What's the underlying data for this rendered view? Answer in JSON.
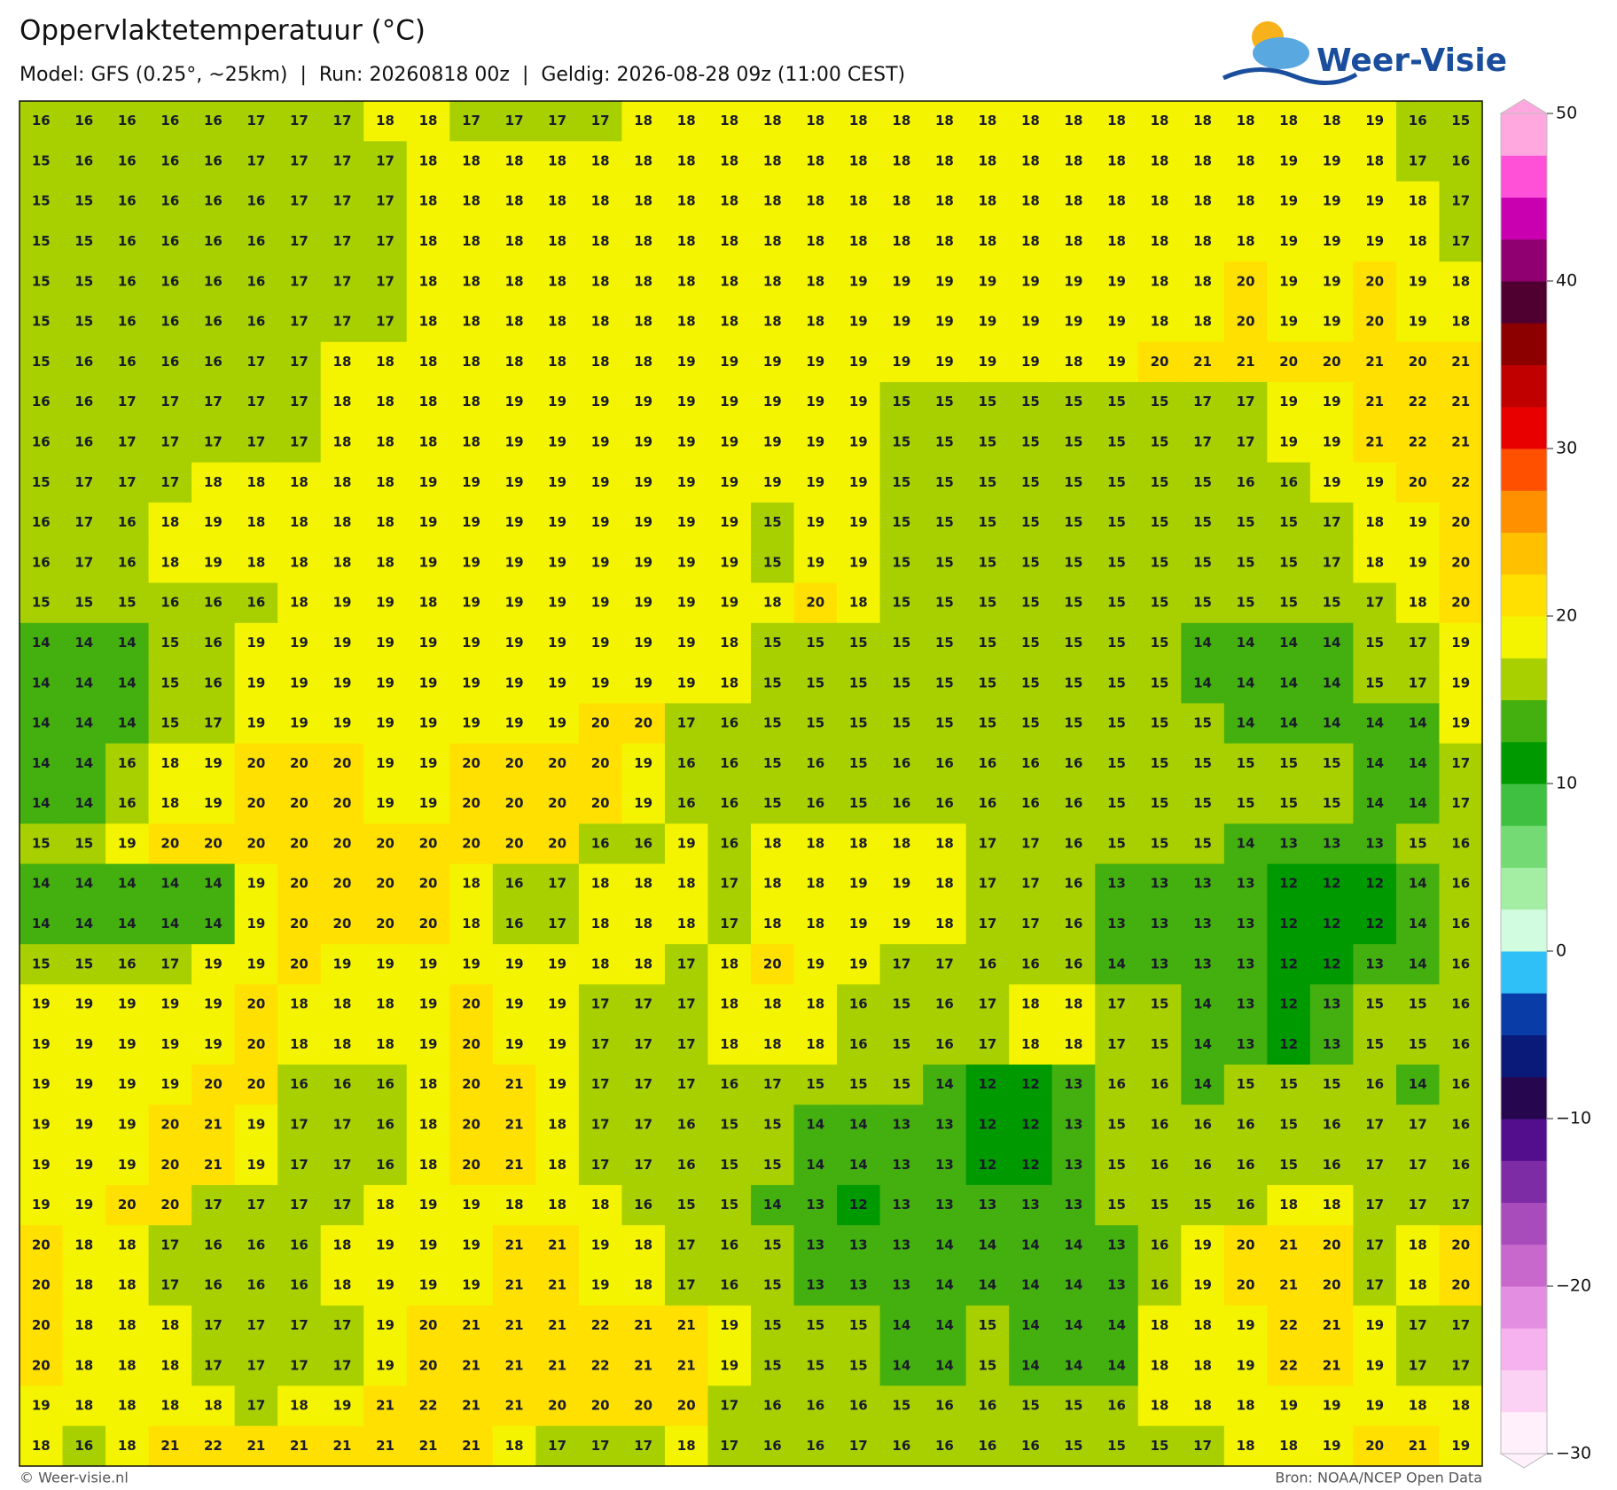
{
  "header": {
    "title": "Oppervlaktetemperatuur (°C)",
    "subtitle": "Model: GFS (0.25°, ~25km)  |  Run: 20260818 00z  |  Geldig: 2026-08-28 09z (11:00 CEST)"
  },
  "logo": {
    "text": "Weer-Visie"
  },
  "grid": {
    "rows": [
      [
        16,
        16,
        16,
        16,
        16,
        17,
        17,
        17,
        18,
        18,
        17,
        17,
        17,
        17,
        18,
        18,
        18,
        18,
        18,
        18,
        18,
        18,
        18,
        18,
        18,
        18,
        18,
        18,
        18,
        18,
        18,
        19,
        16,
        15
      ],
      [
        15,
        16,
        16,
        16,
        16,
        17,
        17,
        17,
        17,
        18,
        18,
        18,
        18,
        18,
        18,
        18,
        18,
        18,
        18,
        18,
        18,
        18,
        18,
        18,
        18,
        18,
        18,
        18,
        18,
        19,
        19,
        18,
        17,
        16
      ],
      [
        15,
        15,
        16,
        16,
        16,
        16,
        17,
        17,
        17,
        18,
        18,
        18,
        18,
        18,
        18,
        18,
        18,
        18,
        18,
        18,
        18,
        18,
        18,
        18,
        18,
        18,
        18,
        18,
        18,
        19,
        19,
        19,
        18,
        17
      ],
      [
        15,
        15,
        16,
        16,
        16,
        16,
        17,
        17,
        17,
        18,
        18,
        18,
        18,
        18,
        18,
        18,
        18,
        18,
        18,
        18,
        18,
        18,
        18,
        18,
        18,
        18,
        18,
        18,
        18,
        19,
        19,
        19,
        18,
        17
      ],
      [
        15,
        15,
        16,
        16,
        16,
        16,
        17,
        17,
        17,
        18,
        18,
        18,
        18,
        18,
        18,
        18,
        18,
        18,
        18,
        19,
        19,
        19,
        19,
        19,
        19,
        19,
        18,
        18,
        20,
        19,
        19,
        20,
        19,
        18
      ],
      [
        15,
        15,
        16,
        16,
        16,
        16,
        17,
        17,
        17,
        18,
        18,
        18,
        18,
        18,
        18,
        18,
        18,
        18,
        18,
        19,
        19,
        19,
        19,
        19,
        19,
        19,
        18,
        18,
        20,
        19,
        19,
        20,
        19,
        18
      ],
      [
        15,
        16,
        16,
        16,
        16,
        17,
        17,
        18,
        18,
        18,
        18,
        18,
        18,
        18,
        18,
        19,
        19,
        19,
        19,
        19,
        19,
        19,
        19,
        19,
        18,
        19,
        20,
        21,
        21,
        20,
        20,
        21,
        20,
        21
      ],
      [
        16,
        16,
        17,
        17,
        17,
        17,
        17,
        18,
        18,
        18,
        18,
        19,
        19,
        19,
        19,
        19,
        19,
        19,
        19,
        19,
        15,
        15,
        15,
        15,
        15,
        15,
        15,
        17,
        17,
        19,
        19,
        21,
        22,
        21
      ],
      [
        16,
        16,
        17,
        17,
        17,
        17,
        17,
        18,
        18,
        18,
        18,
        19,
        19,
        19,
        19,
        19,
        19,
        19,
        19,
        19,
        15,
        15,
        15,
        15,
        15,
        15,
        15,
        17,
        17,
        19,
        19,
        21,
        22,
        21
      ],
      [
        15,
        17,
        17,
        17,
        18,
        18,
        18,
        18,
        18,
        19,
        19,
        19,
        19,
        19,
        19,
        19,
        19,
        19,
        19,
        19,
        15,
        15,
        15,
        15,
        15,
        15,
        15,
        15,
        16,
        16,
        19,
        19,
        20,
        22
      ],
      [
        16,
        17,
        16,
        18,
        19,
        18,
        18,
        18,
        18,
        19,
        19,
        19,
        19,
        19,
        19,
        19,
        19,
        15,
        19,
        19,
        15,
        15,
        15,
        15,
        15,
        15,
        15,
        15,
        15,
        15,
        17,
        18,
        19,
        20
      ],
      [
        16,
        17,
        16,
        18,
        19,
        18,
        18,
        18,
        18,
        19,
        19,
        19,
        19,
        19,
        19,
        19,
        19,
        15,
        19,
        19,
        15,
        15,
        15,
        15,
        15,
        15,
        15,
        15,
        15,
        15,
        17,
        18,
        19,
        20
      ],
      [
        15,
        15,
        15,
        16,
        16,
        16,
        18,
        19,
        19,
        18,
        19,
        19,
        19,
        19,
        19,
        19,
        19,
        18,
        20,
        18,
        15,
        15,
        15,
        15,
        15,
        15,
        15,
        15,
        15,
        15,
        15,
        17,
        18,
        20
      ],
      [
        14,
        14,
        14,
        15,
        16,
        19,
        19,
        19,
        19,
        19,
        19,
        19,
        19,
        19,
        19,
        19,
        18,
        15,
        15,
        15,
        15,
        15,
        15,
        15,
        15,
        15,
        15,
        14,
        14,
        14,
        14,
        15,
        17,
        19
      ],
      [
        14,
        14,
        14,
        15,
        16,
        19,
        19,
        19,
        19,
        19,
        19,
        19,
        19,
        19,
        19,
        19,
        18,
        15,
        15,
        15,
        15,
        15,
        15,
        15,
        15,
        15,
        15,
        14,
        14,
        14,
        14,
        15,
        17,
        19
      ],
      [
        14,
        14,
        14,
        15,
        17,
        19,
        19,
        19,
        19,
        19,
        19,
        19,
        19,
        20,
        20,
        17,
        16,
        15,
        15,
        15,
        15,
        15,
        15,
        15,
        15,
        15,
        15,
        15,
        14,
        14,
        14,
        14,
        14,
        19
      ],
      [
        14,
        14,
        16,
        18,
        19,
        20,
        20,
        20,
        19,
        19,
        20,
        20,
        20,
        20,
        19,
        16,
        16,
        15,
        16,
        15,
        16,
        16,
        16,
        16,
        16,
        15,
        15,
        15,
        15,
        15,
        15,
        14,
        14,
        17
      ],
      [
        14,
        14,
        16,
        18,
        19,
        20,
        20,
        20,
        19,
        19,
        20,
        20,
        20,
        20,
        19,
        16,
        16,
        15,
        16,
        15,
        16,
        16,
        16,
        16,
        16,
        15,
        15,
        15,
        15,
        15,
        15,
        14,
        14,
        17
      ],
      [
        15,
        15,
        19,
        20,
        20,
        20,
        20,
        20,
        20,
        20,
        20,
        20,
        20,
        16,
        16,
        19,
        16,
        18,
        18,
        18,
        18,
        18,
        17,
        17,
        16,
        15,
        15,
        15,
        14,
        13,
        13,
        13,
        15,
        16
      ],
      [
        14,
        14,
        14,
        14,
        14,
        19,
        20,
        20,
        20,
        20,
        18,
        16,
        17,
        18,
        18,
        18,
        17,
        18,
        18,
        19,
        19,
        18,
        17,
        17,
        16,
        13,
        13,
        13,
        13,
        12,
        12,
        12,
        14,
        16
      ],
      [
        14,
        14,
        14,
        14,
        14,
        19,
        20,
        20,
        20,
        20,
        18,
        16,
        17,
        18,
        18,
        18,
        17,
        18,
        18,
        19,
        19,
        18,
        17,
        17,
        16,
        13,
        13,
        13,
        13,
        12,
        12,
        12,
        14,
        16
      ],
      [
        15,
        15,
        16,
        17,
        19,
        19,
        20,
        19,
        19,
        19,
        19,
        19,
        19,
        18,
        18,
        17,
        18,
        20,
        19,
        19,
        17,
        17,
        16,
        16,
        16,
        14,
        13,
        13,
        13,
        12,
        12,
        13,
        14,
        16
      ],
      [
        19,
        19,
        19,
        19,
        19,
        20,
        18,
        18,
        18,
        19,
        20,
        19,
        19,
        17,
        17,
        17,
        18,
        18,
        18,
        16,
        15,
        16,
        17,
        18,
        18,
        17,
        15,
        14,
        13,
        12,
        13,
        15,
        15,
        16
      ],
      [
        19,
        19,
        19,
        19,
        19,
        20,
        18,
        18,
        18,
        19,
        20,
        19,
        19,
        17,
        17,
        17,
        18,
        18,
        18,
        16,
        15,
        16,
        17,
        18,
        18,
        17,
        15,
        14,
        13,
        12,
        13,
        15,
        15,
        16
      ],
      [
        19,
        19,
        19,
        19,
        20,
        20,
        16,
        16,
        16,
        18,
        20,
        21,
        19,
        17,
        17,
        17,
        16,
        17,
        15,
        15,
        15,
        14,
        12,
        12,
        13,
        16,
        16,
        14,
        15,
        15,
        15,
        16,
        14,
        16
      ],
      [
        19,
        19,
        19,
        20,
        21,
        19,
        17,
        17,
        16,
        18,
        20,
        21,
        18,
        17,
        17,
        16,
        15,
        15,
        14,
        14,
        13,
        13,
        12,
        12,
        13,
        15,
        16,
        16,
        16,
        15,
        16,
        17,
        17,
        16
      ],
      [
        19,
        19,
        19,
        20,
        21,
        19,
        17,
        17,
        16,
        18,
        20,
        21,
        18,
        17,
        17,
        16,
        15,
        15,
        14,
        14,
        13,
        13,
        12,
        12,
        13,
        15,
        16,
        16,
        16,
        15,
        16,
        17,
        17,
        16
      ],
      [
        19,
        19,
        20,
        20,
        17,
        17,
        17,
        17,
        18,
        19,
        19,
        18,
        18,
        18,
        16,
        15,
        15,
        14,
        13,
        12,
        13,
        13,
        13,
        13,
        13,
        15,
        15,
        15,
        16,
        18,
        18,
        17,
        17,
        17
      ],
      [
        20,
        18,
        18,
        17,
        16,
        16,
        16,
        18,
        19,
        19,
        19,
        21,
        21,
        19,
        18,
        17,
        16,
        15,
        13,
        13,
        13,
        14,
        14,
        14,
        14,
        13,
        16,
        19,
        20,
        21,
        20,
        17,
        18,
        20
      ],
      [
        20,
        18,
        18,
        17,
        16,
        16,
        16,
        18,
        19,
        19,
        19,
        21,
        21,
        19,
        18,
        17,
        16,
        15,
        13,
        13,
        13,
        14,
        14,
        14,
        14,
        13,
        16,
        19,
        20,
        21,
        20,
        17,
        18,
        20
      ],
      [
        20,
        18,
        18,
        18,
        17,
        17,
        17,
        17,
        19,
        20,
        21,
        21,
        21,
        22,
        21,
        21,
        19,
        15,
        15,
        15,
        14,
        14,
        15,
        14,
        14,
        14,
        18,
        18,
        19,
        22,
        21,
        19,
        17,
        17
      ],
      [
        20,
        18,
        18,
        18,
        17,
        17,
        17,
        17,
        19,
        20,
        21,
        21,
        21,
        22,
        21,
        21,
        19,
        15,
        15,
        15,
        14,
        14,
        15,
        14,
        14,
        14,
        18,
        18,
        19,
        22,
        21,
        19,
        17,
        17
      ],
      [
        19,
        18,
        18,
        18,
        18,
        17,
        18,
        19,
        21,
        22,
        21,
        21,
        20,
        20,
        20,
        20,
        17,
        16,
        16,
        16,
        15,
        16,
        16,
        15,
        15,
        16,
        18,
        18,
        18,
        19,
        19,
        19,
        18,
        18
      ],
      [
        18,
        16,
        18,
        21,
        22,
        21,
        21,
        21,
        21,
        21,
        21,
        18,
        17,
        17,
        17,
        18,
        17,
        16,
        16,
        17,
        16,
        16,
        16,
        16,
        15,
        15,
        15,
        17,
        18,
        18,
        19,
        20,
        21,
        19
      ]
    ]
  },
  "colorbar": {
    "lim": [
      -30,
      50
    ],
    "ticks": [
      50,
      40,
      30,
      20,
      10,
      0,
      {
        "value": -10,
        "label": "−10"
      },
      {
        "value": -20,
        "label": "−20"
      },
      {
        "value": -30,
        "label": "−30"
      }
    ],
    "colors": [
      "#fff0fc",
      "#fcd2f4",
      "#f6b2ee",
      "#e48ee2",
      "#c868cc",
      "#a84cbc",
      "#7e2ca6",
      "#520e8c",
      "#26064e",
      "#0a1a78",
      "#0a3ca8",
      "#30c0f8",
      "#d2fce0",
      "#a4eea4",
      "#74da74",
      "#40c040",
      "#009a00",
      "#44b010",
      "#a8d000",
      "#f4f400",
      "#ffe000",
      "#ffc000",
      "#ff9000",
      "#ff5000",
      "#e80000",
      "#c00000",
      "#8c0000",
      "#500030",
      "#900070",
      "#c800b0",
      "#ff50d8",
      "#ffa8e0"
    ]
  },
  "footer": {
    "left": "© Weer-visie.nl",
    "right": "Bron: NOAA/NCEP Open Data"
  }
}
